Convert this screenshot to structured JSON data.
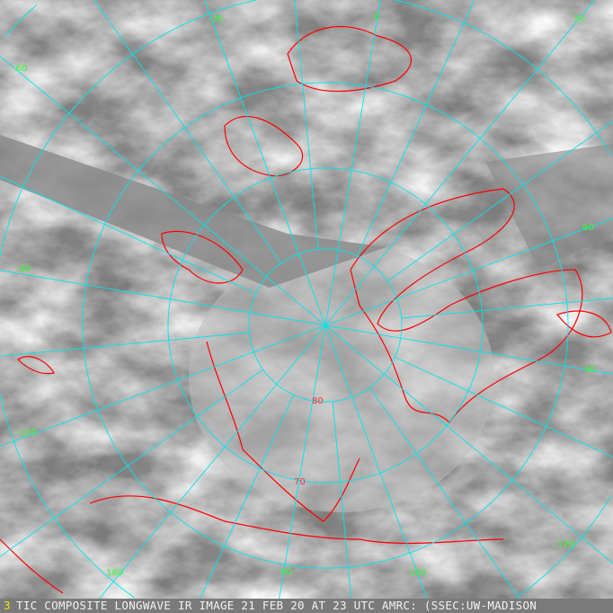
{
  "image": {
    "caption": "TIC COMPOSITE LONGWAVE IR IMAGE 21 FEB 20 AT 23 UTC AMRC: (SSEC:UW-MADISON",
    "caption_marker": "3",
    "colors": {
      "grid": "#00e5ee",
      "coastline": "#ff0000",
      "label": "#33ff33",
      "caption": "#f2f2f2"
    },
    "latitude_labels": [
      "80",
      "70",
      "60"
    ],
    "longitude_labels": [
      "-30",
      "0",
      "30",
      "-60",
      "60",
      "-90",
      "90",
      "-120",
      "120",
      "150",
      "180"
    ]
  }
}
